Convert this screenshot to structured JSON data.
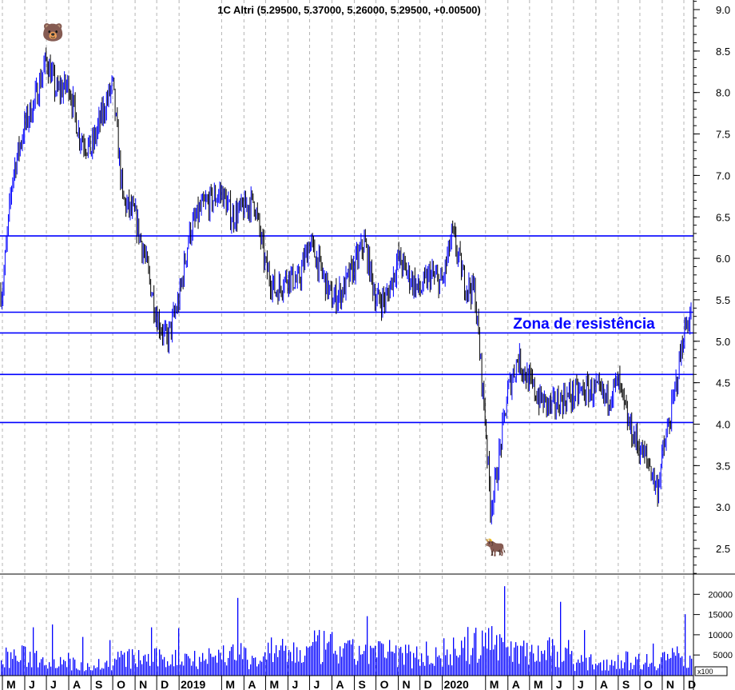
{
  "chart_data": {
    "type": "bar",
    "style": "ohlc",
    "title": "1C Altri (5.29500, 5.37000, 5.26000, 5.29500, +0.00500)",
    "annotation": "Zona de resistência",
    "y_ticks": [
      "9.0",
      "8.5",
      "8.0",
      "7.5",
      "7.0",
      "6.5",
      "6.0",
      "5.5",
      "5.0",
      "4.5",
      "4.0",
      "3.5",
      "3.0",
      "2.5"
    ],
    "ylim": [
      2.2,
      9.1
    ],
    "volume_ticks": [
      "20000",
      "15000",
      "10000",
      "5000"
    ],
    "volume_unit": "x100",
    "volume_ylim": [
      0,
      25000
    ],
    "x_ticks": [
      {
        "label": "M",
        "date": "2018-05-01"
      },
      {
        "label": "J",
        "date": "2018-06-01"
      },
      {
        "label": "J",
        "date": "2018-07-01"
      },
      {
        "label": "A",
        "date": "2018-08-01"
      },
      {
        "label": "S",
        "date": "2018-09-01"
      },
      {
        "label": "O",
        "date": "2018-10-01"
      },
      {
        "label": "N",
        "date": "2018-11-01"
      },
      {
        "label": "D",
        "date": "2018-12-01"
      },
      {
        "label": "2019",
        "date": "2019-01-01"
      },
      {
        "label": "M",
        "date": "2019-03-01"
      },
      {
        "label": "A",
        "date": "2019-04-01"
      },
      {
        "label": "M",
        "date": "2019-05-01"
      },
      {
        "label": "J",
        "date": "2019-06-01"
      },
      {
        "label": "J",
        "date": "2019-07-01"
      },
      {
        "label": "A",
        "date": "2019-08-01"
      },
      {
        "label": "S",
        "date": "2019-09-01"
      },
      {
        "label": "O",
        "date": "2019-10-01"
      },
      {
        "label": "N",
        "date": "2019-11-01"
      },
      {
        "label": "D",
        "date": "2019-12-01"
      },
      {
        "label": "2020",
        "date": "2020-01-01"
      },
      {
        "label": "M",
        "date": "2020-03-01"
      },
      {
        "label": "A",
        "date": "2020-04-01"
      },
      {
        "label": "M",
        "date": "2020-05-01"
      },
      {
        "label": "J",
        "date": "2020-06-01"
      },
      {
        "label": "J",
        "date": "2020-07-01"
      },
      {
        "label": "A",
        "date": "2020-08-01"
      },
      {
        "label": "S",
        "date": "2020-09-01"
      },
      {
        "label": "O",
        "date": "2020-10-01"
      },
      {
        "label": "N",
        "date": "2020-11-01"
      },
      {
        "label": "D",
        "date": "2020-12-01"
      }
    ],
    "horizontal_lines": [
      6.27,
      5.35,
      5.1,
      4.6,
      4.02
    ],
    "line_color": "#0000ff",
    "up_color": "#0000ff",
    "down_color": "#000000",
    "icons": [
      {
        "name": "bear",
        "date": "2018-07-10"
      },
      {
        "name": "bull",
        "date": "2020-03-15"
      }
    ],
    "close": [
      [
        "2018-05-01",
        5.6
      ],
      [
        "2018-05-15",
        7.0
      ],
      [
        "2018-06-01",
        7.6
      ],
      [
        "2018-06-15",
        7.9
      ],
      [
        "2018-07-01",
        8.4
      ],
      [
        "2018-07-15",
        8.0
      ],
      [
        "2018-08-01",
        8.1
      ],
      [
        "2018-08-15",
        7.5
      ],
      [
        "2018-09-01",
        7.3
      ],
      [
        "2018-09-15",
        7.7
      ],
      [
        "2018-10-01",
        8.1
      ],
      [
        "2018-10-15",
        6.7
      ],
      [
        "2018-11-01",
        6.5
      ],
      [
        "2018-11-15",
        6.0
      ],
      [
        "2018-12-01",
        5.3
      ],
      [
        "2018-12-15",
        5.0
      ],
      [
        "2019-01-01",
        5.5
      ],
      [
        "2019-01-15",
        6.3
      ],
      [
        "2019-02-01",
        6.6
      ],
      [
        "2019-02-15",
        6.7
      ],
      [
        "2019-03-01",
        6.8
      ],
      [
        "2019-03-15",
        6.5
      ],
      [
        "2019-04-01",
        6.6
      ],
      [
        "2019-04-15",
        6.7
      ],
      [
        "2019-05-01",
        5.9
      ],
      [
        "2019-05-15",
        5.6
      ],
      [
        "2019-06-01",
        5.8
      ],
      [
        "2019-06-15",
        5.7
      ],
      [
        "2019-07-01",
        6.2
      ],
      [
        "2019-07-15",
        5.9
      ],
      [
        "2019-08-01",
        5.5
      ],
      [
        "2019-08-15",
        5.6
      ],
      [
        "2019-09-01",
        5.9
      ],
      [
        "2019-09-15",
        6.2
      ],
      [
        "2019-10-01",
        5.5
      ],
      [
        "2019-10-15",
        5.5
      ],
      [
        "2019-11-01",
        6.0
      ],
      [
        "2019-11-15",
        5.8
      ],
      [
        "2019-12-01",
        5.6
      ],
      [
        "2019-12-15",
        5.8
      ],
      [
        "2020-01-01",
        5.7
      ],
      [
        "2020-01-15",
        6.3
      ],
      [
        "2020-02-01",
        5.7
      ],
      [
        "2020-02-15",
        5.6
      ],
      [
        "2020-03-01",
        4.0
      ],
      [
        "2020-03-08",
        3.0
      ],
      [
        "2020-03-15",
        3.3
      ],
      [
        "2020-04-01",
        4.4
      ],
      [
        "2020-04-15",
        4.8
      ],
      [
        "2020-05-01",
        4.5
      ],
      [
        "2020-05-15",
        4.3
      ],
      [
        "2020-06-01",
        4.2
      ],
      [
        "2020-06-15",
        4.3
      ],
      [
        "2020-07-01",
        4.35
      ],
      [
        "2020-07-15",
        4.4
      ],
      [
        "2020-08-01",
        4.4
      ],
      [
        "2020-08-15",
        4.3
      ],
      [
        "2020-09-01",
        4.5
      ],
      [
        "2020-09-15",
        4.0
      ],
      [
        "2020-10-01",
        3.7
      ],
      [
        "2020-10-15",
        3.5
      ],
      [
        "2020-10-25",
        3.2
      ],
      [
        "2020-11-01",
        3.6
      ],
      [
        "2020-11-15",
        4.2
      ],
      [
        "2020-12-01",
        5.1
      ],
      [
        "2020-12-08",
        5.295
      ]
    ],
    "volume_monthly_typical": [
      [
        "2018-05",
        5000
      ],
      [
        "2018-06",
        5000
      ],
      [
        "2018-07",
        4500
      ],
      [
        "2018-08",
        3000
      ],
      [
        "2018-09",
        3000
      ],
      [
        "2018-10",
        4500
      ],
      [
        "2018-11",
        4500
      ],
      [
        "2018-12",
        4500
      ],
      [
        "2019-01",
        5000
      ],
      [
        "2019-02",
        5000
      ],
      [
        "2019-03",
        6000
      ],
      [
        "2019-04",
        4500
      ],
      [
        "2019-05",
        6000
      ],
      [
        "2019-06",
        6000
      ],
      [
        "2019-07",
        7500
      ],
      [
        "2019-08",
        6000
      ],
      [
        "2019-09",
        6500
      ],
      [
        "2019-10",
        6000
      ],
      [
        "2019-11",
        5500
      ],
      [
        "2019-12",
        5000
      ],
      [
        "2020-01",
        6500
      ],
      [
        "2020-02",
        8000
      ],
      [
        "2020-03",
        10000
      ],
      [
        "2020-04",
        7000
      ],
      [
        "2020-05",
        6500
      ],
      [
        "2020-06",
        6500
      ],
      [
        "2020-07",
        3500
      ],
      [
        "2020-08",
        3500
      ],
      [
        "2020-09",
        4000
      ],
      [
        "2020-10",
        4000
      ],
      [
        "2020-11",
        5000
      ],
      [
        "2020-12",
        5000
      ]
    ]
  }
}
